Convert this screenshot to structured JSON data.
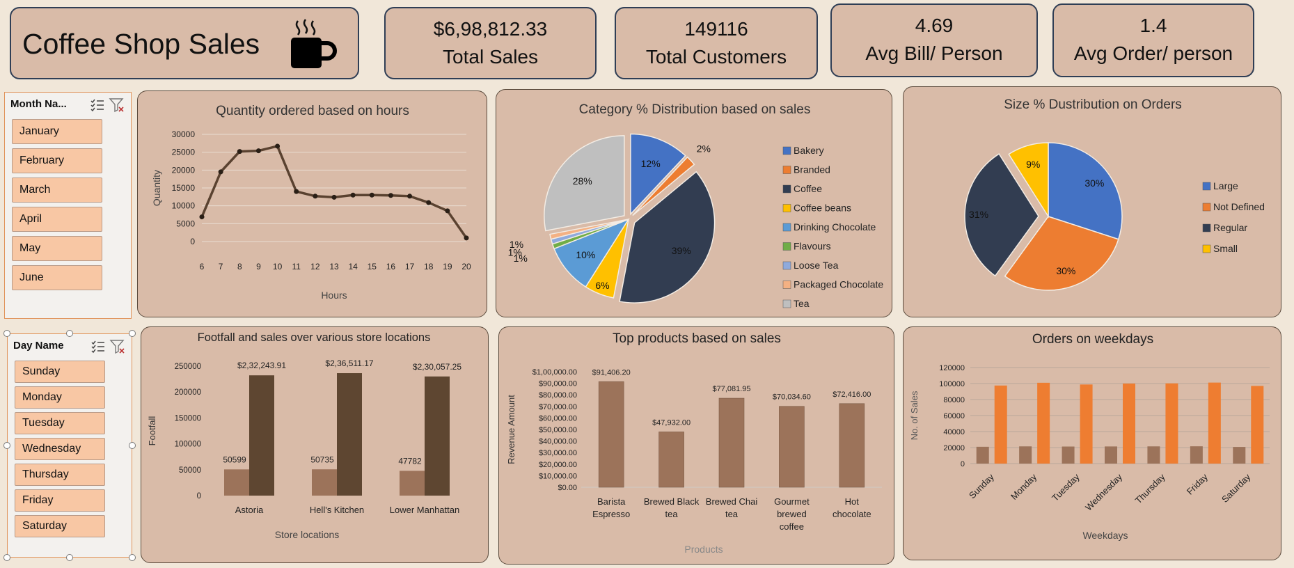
{
  "header": {
    "title": "Coffee Shop Sales",
    "icon": "coffee-cup-icon"
  },
  "kpis": [
    {
      "value": "$6,98,812.33",
      "label": "Total Sales"
    },
    {
      "value": "149116",
      "label": "Total Customers"
    },
    {
      "value": "4.69",
      "label": "Avg Bill/ Person"
    },
    {
      "value": "1.4",
      "label": "Avg Order/ person"
    }
  ],
  "month_slicer": {
    "title": "Month Na...",
    "items": [
      "January",
      "February",
      "March",
      "April",
      "May",
      "June"
    ]
  },
  "day_slicer": {
    "title": "Day Name",
    "items": [
      "Sunday",
      "Monday",
      "Tuesday",
      "Wednesday",
      "Thursday",
      "Friday",
      "Saturday"
    ]
  },
  "colors": {
    "card_bg": "#d9bba8",
    "page_bg": "#f1e7d9",
    "slicer_item": "#f8c7a4",
    "line": "#5a4230",
    "bar_light": "#9c735a",
    "bar_dark": "#5e4631",
    "orange": "#ee7d31"
  },
  "chart_data": [
    {
      "id": "hours",
      "type": "line",
      "title": "Quantity ordered based on hours",
      "xlabel": "Hours",
      "ylabel": "Quantity",
      "x": [
        6,
        7,
        8,
        9,
        10,
        11,
        12,
        13,
        14,
        15,
        16,
        17,
        18,
        19,
        20
      ],
      "values": [
        6900,
        19500,
        25200,
        25400,
        26700,
        14000,
        12700,
        12400,
        13000,
        13000,
        12900,
        12700,
        10900,
        8600,
        1000
      ],
      "yticks": [
        "0",
        "5000",
        "10000",
        "15000",
        "20000",
        "25000",
        "30000"
      ],
      "ylim": [
        0,
        30000
      ],
      "grid": true
    },
    {
      "id": "category",
      "type": "pie",
      "title": "Category % Distribution based on sales",
      "legend_position": "right",
      "slices": [
        {
          "name": "Bakery",
          "value": 12,
          "label": "12%",
          "color": "#4472c4"
        },
        {
          "name": "Branded",
          "value": 2,
          "label": "2%",
          "color": "#ed7d31"
        },
        {
          "name": "Coffee",
          "value": 39,
          "label": "39%",
          "color": "#323d51"
        },
        {
          "name": "Coffee beans",
          "value": 6,
          "label": "6%",
          "color": "#ffc000"
        },
        {
          "name": "Drinking Chocolate",
          "value": 10,
          "label": "10%",
          "color": "#5b9bd5"
        },
        {
          "name": "Flavours",
          "value": 1,
          "label": "1%",
          "color": "#70ad47"
        },
        {
          "name": "Loose Tea",
          "value": 1,
          "label": "1%",
          "color": "#8faadc"
        },
        {
          "name": "Packaged Chocolate",
          "value": 1,
          "label": "1%",
          "color": "#f4b183"
        },
        {
          "name": "Tea",
          "value": 28,
          "label": "28%",
          "color": "#bfbfbf"
        }
      ]
    },
    {
      "id": "size",
      "type": "pie",
      "title": "Size % Dustribution on Orders",
      "legend_position": "right",
      "slices": [
        {
          "name": "Large",
          "value": 30,
          "label": "30%",
          "color": "#4472c4"
        },
        {
          "name": "Not Defined",
          "value": 30,
          "label": "30%",
          "color": "#ed7d31"
        },
        {
          "name": "Regular",
          "value": 31,
          "label": "31%",
          "color": "#323d51"
        },
        {
          "name": "Small",
          "value": 9,
          "label": "9%",
          "color": "#ffc000"
        }
      ]
    },
    {
      "id": "footfall",
      "type": "bar",
      "title": "Footfall and sales over various store locations",
      "xlabel": "Store locations",
      "ylabel": "Footfall",
      "categories": [
        "Astoria",
        "Hell's Kitchen",
        "Lower Manhattan"
      ],
      "series": [
        {
          "values": [
            50599,
            50735,
            47782
          ],
          "labels": [
            "50599",
            "50735",
            "47782"
          ],
          "color": "#9c735a"
        },
        {
          "values": [
            232243.91,
            236511.17,
            230057.25
          ],
          "labels": [
            "$2,32,243.91",
            "$2,36,511.17",
            "$2,30,057.25"
          ],
          "color": "#5e4631"
        }
      ],
      "yticks": [
        "0",
        "50000",
        "100000",
        "150000",
        "200000",
        "250000"
      ],
      "ylim": [
        0,
        250000
      ],
      "grid": false
    },
    {
      "id": "products",
      "type": "bar",
      "title": "Top products based on sales",
      "xlabel": "Products",
      "ylabel": "Revenue Amount",
      "categories": [
        [
          "Barista",
          "Espresso"
        ],
        [
          "Brewed Black",
          "tea"
        ],
        [
          "Brewed Chai",
          "tea"
        ],
        [
          "Gourmet",
          "brewed",
          "coffee"
        ],
        [
          "Hot",
          "chocolate"
        ]
      ],
      "values": [
        91406.2,
        47932.0,
        77081.95,
        70034.6,
        72416.0
      ],
      "labels": [
        "$91,406.20",
        "$47,932.00",
        "$77,081.95",
        "$70,034.60",
        "$72,416.00"
      ],
      "yticks": [
        "$0.00",
        "$10,000.00",
        "$20,000.00",
        "$30,000.00",
        "$40,000.00",
        "$50,000.00",
        "$60,000.00",
        "$70,000.00",
        "$80,000.00",
        "$90,000.00",
        "$1,00,000.00"
      ],
      "ylim": [
        0,
        100000
      ],
      "color": "#9c735a",
      "grid": false
    },
    {
      "id": "weekdays",
      "type": "bar",
      "title": "Orders on weekdays",
      "xlabel": "Weekdays",
      "ylabel": "No. of Sales",
      "categories": [
        "Sunday",
        "Monday",
        "Tuesday",
        "Wednesday",
        "Thursday",
        "Friday",
        "Saturday"
      ],
      "series": [
        {
          "values": [
            21000,
            21500,
            21300,
            21400,
            21500,
            21600,
            20800
          ],
          "color": "#9c735a"
        },
        {
          "values": [
            97500,
            101000,
            98800,
            100000,
            100200,
            101200,
            97000
          ],
          "color": "#ee7d31"
        }
      ],
      "yticks": [
        "0",
        "20000",
        "40000",
        "60000",
        "80000",
        "100000",
        "120000"
      ],
      "ylim": [
        0,
        120000
      ],
      "grid": true
    }
  ]
}
